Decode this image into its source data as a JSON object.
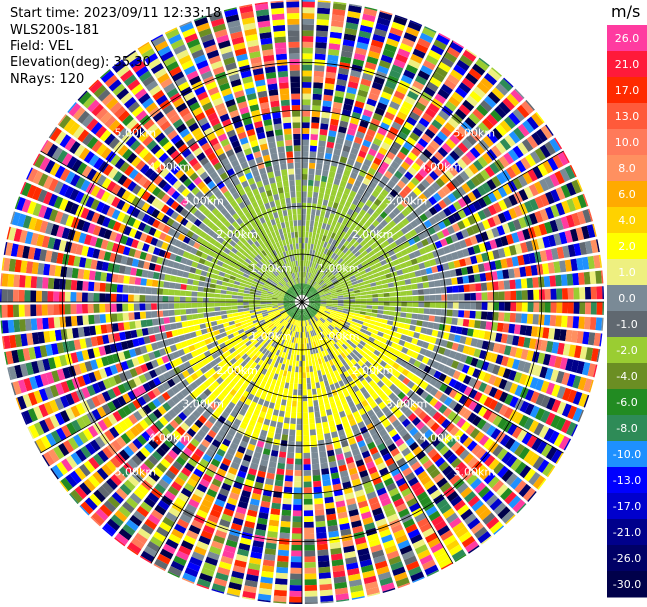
{
  "header": {
    "start_time": "Start time: 2023/09/11 12:33:18",
    "instrument": "WLS200s-181",
    "field": "Field: VEL",
    "elevation": "Elevation(deg): 35.30",
    "nrays": "NRays: 120"
  },
  "colorbar": {
    "unit": "m/s",
    "levels": [
      {
        "label": "26.0",
        "color": "#ff3ba0"
      },
      {
        "label": "21.0",
        "color": "#ff1a3a"
      },
      {
        "label": "17.0",
        "color": "#ff2a00"
      },
      {
        "label": "13.0",
        "color": "#ff5a3a"
      },
      {
        "label": "10.0",
        "color": "#ff7a5a"
      },
      {
        "label": "8.0",
        "color": "#ff9060"
      },
      {
        "label": "6.0",
        "color": "#ffaa00"
      },
      {
        "label": "4.0",
        "color": "#ffd200"
      },
      {
        "label": "2.0",
        "color": "#ffff00"
      },
      {
        "label": "1.0",
        "color": "#eef080"
      },
      {
        "label": "0.0",
        "color": "#7a8a96"
      },
      {
        "label": "-1.0",
        "color": "#606870"
      },
      {
        "label": "-2.0",
        "color": "#9acd32"
      },
      {
        "label": "-4.0",
        "color": "#6b8e23"
      },
      {
        "label": "-6.0",
        "color": "#228b22"
      },
      {
        "label": "-8.0",
        "color": "#2e8b57"
      },
      {
        "label": "-10.0",
        "color": "#1e90ff"
      },
      {
        "label": "-13.0",
        "color": "#0000ff"
      },
      {
        "label": "-17.0",
        "color": "#0000cd"
      },
      {
        "label": "-21.0",
        "color": "#00008b"
      },
      {
        "label": "-26.0",
        "color": "#000066"
      },
      {
        "label": "-30.0",
        "color": "#00004a"
      }
    ]
  },
  "chart_data": {
    "type": "heatmap",
    "projection": "polar PPI",
    "field": "VEL",
    "units": "m/s",
    "nrays": 120,
    "range_rings_km": [
      1.0,
      2.0,
      3.0,
      4.0,
      5.0
    ],
    "ring_labels": [
      "1.00km",
      "2.00km",
      "3.00km",
      "4.00km",
      "5.00km"
    ],
    "value_min": -30.0,
    "value_max": 26.0,
    "regions": [
      {
        "description": "near field, north half",
        "range_km": [
          0.2,
          2.6
        ],
        "dominant_value": -2.0
      },
      {
        "description": "near field, south half",
        "range_km": [
          0.2,
          2.8
        ],
        "dominant_value": 2.0
      },
      {
        "description": "far field noise",
        "range_km": [
          2.8,
          6.3
        ],
        "dominant_value": "mixed"
      }
    ],
    "grid": true
  }
}
